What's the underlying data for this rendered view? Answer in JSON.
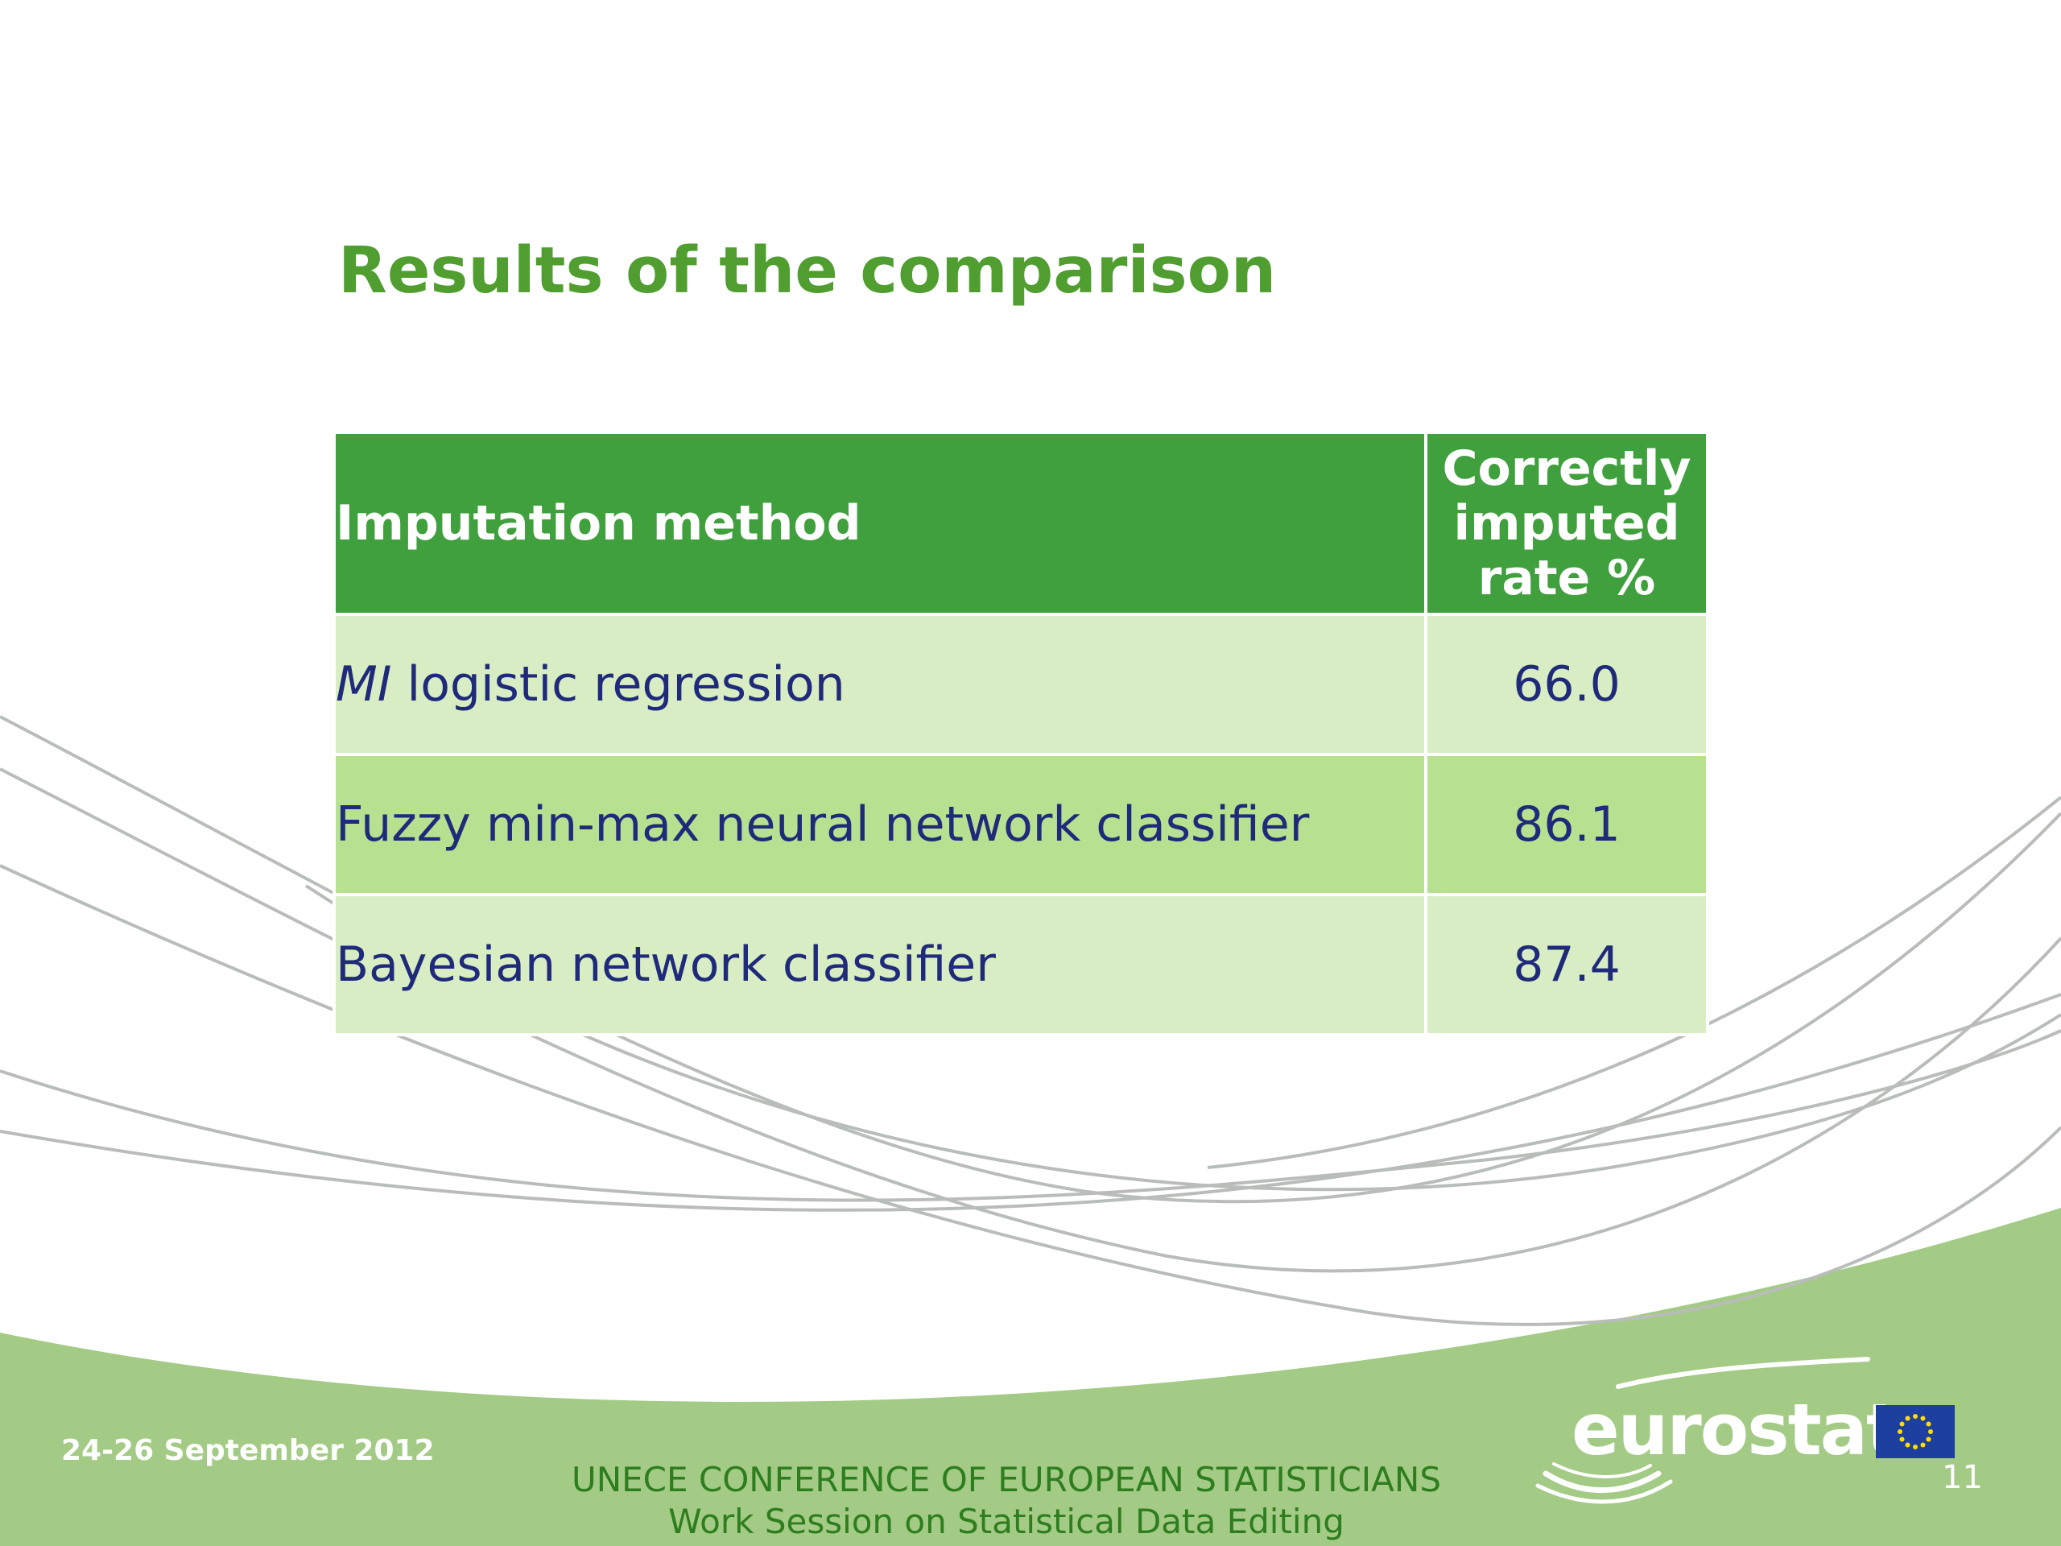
{
  "slide": {
    "title": "Results of the comparison"
  },
  "table": {
    "headers": {
      "method": "Imputation method",
      "rate": [
        "Correctly",
        "imputed",
        "rate %"
      ]
    },
    "rows": [
      {
        "method_emphasis": "MI",
        "method": " logistic regression",
        "rate": "66.0"
      },
      {
        "method_emphasis": "",
        "method": "Fuzzy min-max neural network classifier",
        "rate": "86.1"
      },
      {
        "method_emphasis": "",
        "method": "Bayesian network classifier",
        "rate": "87.4"
      }
    ]
  },
  "footer": {
    "date": "24-26 September 2012",
    "conference_line1": "UNECE CONFERENCE OF EUROPEAN STATISTICIANS",
    "conference_line2": "Work Session on Statistical Data Editing",
    "logo": "eurostat",
    "page_number": "11"
  },
  "colors": {
    "title": "#4f9e2f",
    "header_bg": "#40a03e",
    "row_light": "#d9edc4",
    "row_dark": "#b7e090",
    "body_text": "#1f2a7a",
    "footer_band": "#a3cb85",
    "eu_blue": "#1d3fa0"
  },
  "icons": [
    "eu-flag-icon",
    "eurostat-logo"
  ]
}
